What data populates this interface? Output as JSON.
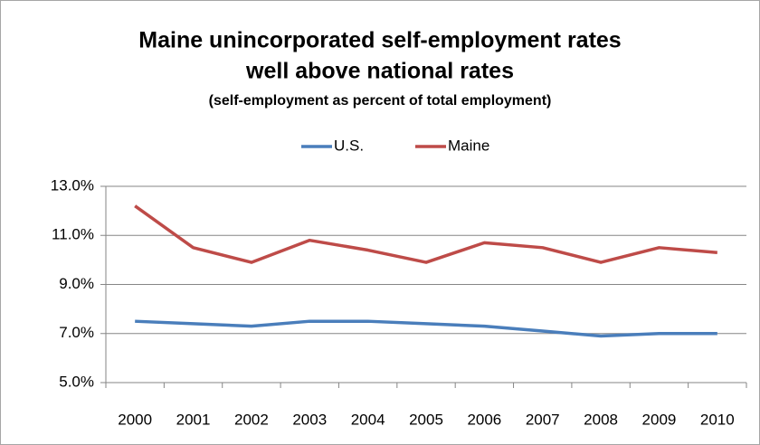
{
  "chart_data": {
    "type": "line",
    "title": [
      "Maine unincorporated self-employment rates",
      "well above national rates"
    ],
    "subtitle": "(self-employment as percent of total employment)",
    "categories": [
      "2000",
      "2001",
      "2002",
      "2003",
      "2004",
      "2005",
      "2006",
      "2007",
      "2008",
      "2009",
      "2010"
    ],
    "series": [
      {
        "name": "U.S.",
        "color": "#4a7ebb",
        "values": [
          7.5,
          7.4,
          7.3,
          7.5,
          7.5,
          7.4,
          7.3,
          7.1,
          6.9,
          7.0,
          7.0
        ]
      },
      {
        "name": "Maine",
        "color": "#be4b48",
        "values": [
          12.2,
          10.5,
          9.9,
          10.8,
          10.4,
          9.9,
          10.7,
          10.5,
          9.9,
          10.5,
          10.3
        ]
      }
    ],
    "ylim": [
      5,
      13
    ],
    "yticks": [
      {
        "value": 5,
        "label": "5.0%"
      },
      {
        "value": 7,
        "label": "7.0%"
      },
      {
        "value": 9,
        "label": "9.0%"
      },
      {
        "value": 11,
        "label": "11.0%"
      },
      {
        "value": 13,
        "label": "13.0%"
      }
    ],
    "grid": true,
    "legend": "top"
  }
}
